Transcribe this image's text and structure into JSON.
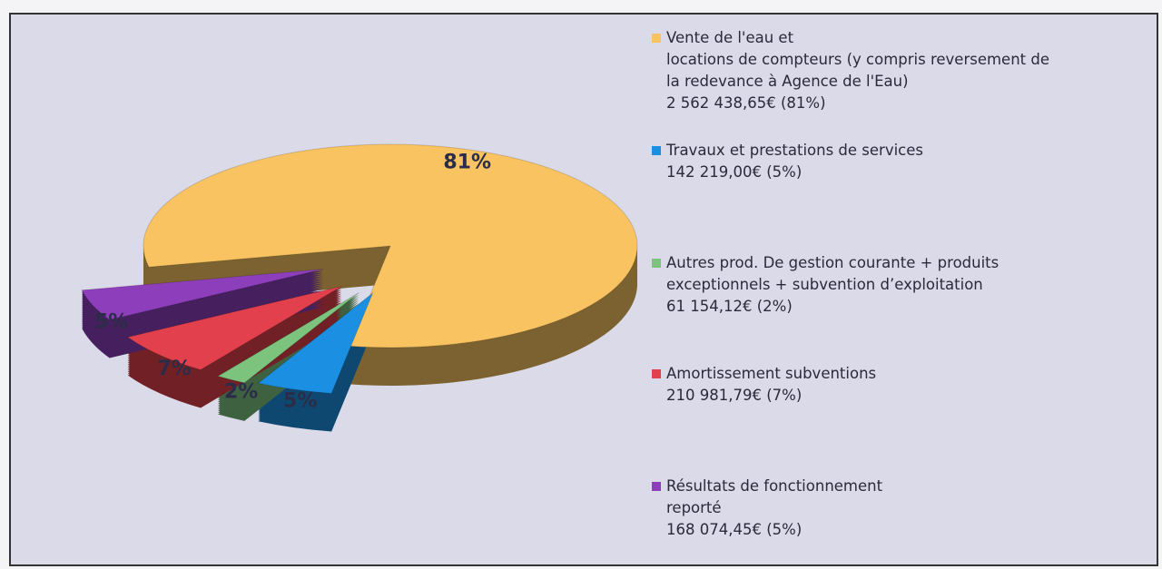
{
  "chart_data": {
    "type": "pie",
    "categories": [
      "Vente de l'eau et\nlocations de compteurs (y compris reversement de\nla redevance à Agence de l'Eau)",
      "Travaux et prestations de services",
      "Autres prod. De gestion courante + produits\nexceptionnels + subvention d’exploitation",
      "Amortissement subventions",
      "Résultats de fonctionnement\nreporté"
    ],
    "values": [
      81,
      5,
      2,
      7,
      5
    ],
    "value_labels": [
      "81%",
      "5%",
      "2%",
      "7%",
      "5%"
    ],
    "legend_amounts": [
      "2 562 438,65€ (81%)",
      "142 219,00€ (5%)",
      "61 154,12€ (2%)",
      "210 981,79€ (7%)",
      "168 074,45€ (5%)"
    ],
    "colors": [
      "#f8c360",
      "#1b8fe2",
      "#7cc47e",
      "#e2404c",
      "#8d3fbb"
    ]
  }
}
